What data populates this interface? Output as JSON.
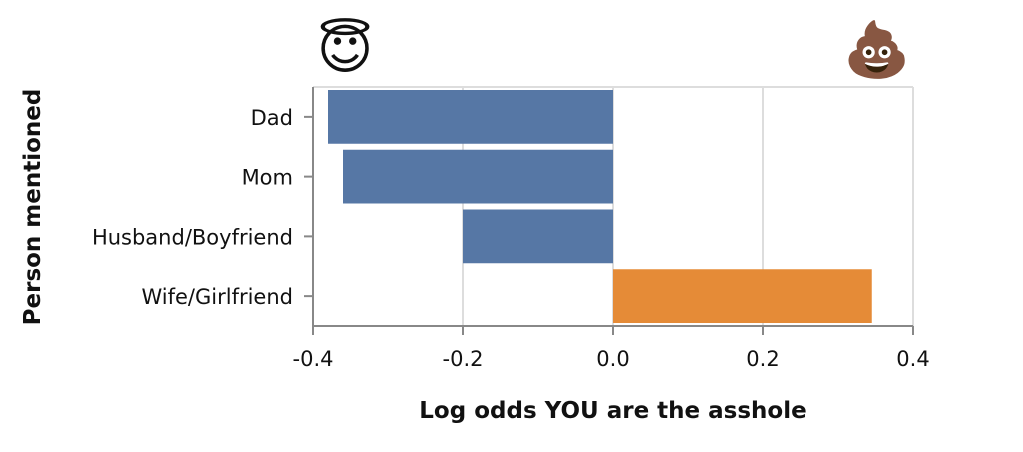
{
  "chart_data": {
    "type": "bar",
    "orientation": "horizontal",
    "categories": [
      "Dad",
      "Mom",
      "Husband/Boyfriend",
      "Wife/Girlfriend"
    ],
    "values": [
      -0.38,
      -0.36,
      -0.2,
      0.345
    ],
    "colors": [
      "#5677a5",
      "#5677a5",
      "#5677a5",
      "#e58b37"
    ],
    "xlabel": "Log odds YOU are the asshole",
    "ylabel": "Person mentioned",
    "xlim": [
      -0.4,
      0.4
    ],
    "xticks": [
      "-0.4",
      "-0.2",
      "0.0",
      "0.2",
      "0.4"
    ],
    "grid": true,
    "annotations": {
      "left_icon": "angel-emoji",
      "left_glyph": "😇",
      "right_icon": "poop-emoji",
      "right_glyph": "💩"
    }
  }
}
